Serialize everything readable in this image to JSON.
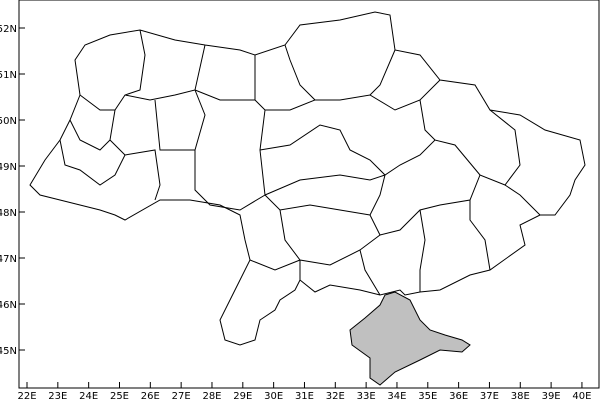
{
  "map": {
    "highlight_region_color": "#c0c0c0",
    "boundary_color": "#000000",
    "x_ticks": [
      "22E",
      "23E",
      "24E",
      "25E",
      "26E",
      "27E",
      "28E",
      "29E",
      "30E",
      "31E",
      "32E",
      "33E",
      "34E",
      "35E",
      "36E",
      "37E",
      "38E",
      "39E",
      "40E"
    ],
    "y_ticks": [
      "52N",
      "51N",
      "50N",
      "49N",
      "48N",
      "47N",
      "46N",
      "45N"
    ],
    "x_range_deg_e": [
      21.8,
      40.5
    ],
    "y_range_deg_n": [
      44.2,
      52.4
    ]
  }
}
